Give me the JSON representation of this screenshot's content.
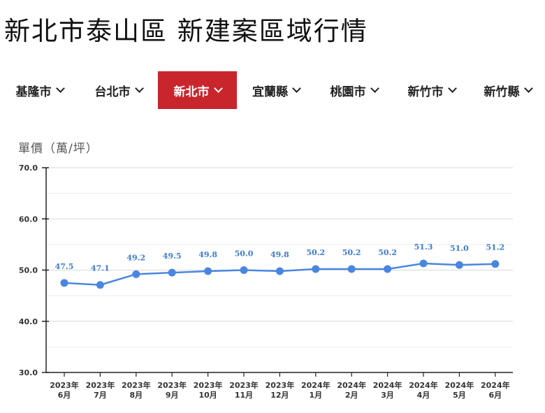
{
  "page": {
    "title": "新北市泰山區 新建案區域行情"
  },
  "tabs": [
    {
      "label": "基隆市",
      "active": false
    },
    {
      "label": "台北市",
      "active": false
    },
    {
      "label": "新北市",
      "active": true
    },
    {
      "label": "宜蘭縣",
      "active": false
    },
    {
      "label": "桃園市",
      "active": false
    },
    {
      "label": "新竹市",
      "active": false
    },
    {
      "label": "新竹縣",
      "active": false
    }
  ],
  "colors": {
    "accent": "#c9252c",
    "series": "#4a86e0",
    "data_label": "#3a7bd5"
  },
  "chart_data": {
    "type": "line",
    "ylabel": "單價（萬/坪）",
    "xlabel": "",
    "ylim": [
      30,
      70
    ],
    "yticks": [
      "30.0",
      "40.0",
      "50.0",
      "60.0",
      "70.0"
    ],
    "grid": true,
    "categories": [
      [
        "2023年",
        "6月"
      ],
      [
        "2023年",
        "7月"
      ],
      [
        "2023年",
        "8月"
      ],
      [
        "2023年",
        "9月"
      ],
      [
        "2023年",
        "10月"
      ],
      [
        "2023年",
        "11月"
      ],
      [
        "2023年",
        "12月"
      ],
      [
        "2024年",
        "1月"
      ],
      [
        "2024年",
        "2月"
      ],
      [
        "2024年",
        "3月"
      ],
      [
        "2024年",
        "4月"
      ],
      [
        "2024年",
        "5月"
      ],
      [
        "2024年",
        "6月"
      ]
    ],
    "series": [
      {
        "values": [
          47.5,
          47.1,
          49.2,
          49.5,
          49.8,
          50.0,
          49.8,
          50.2,
          50.2,
          50.2,
          51.3,
          51.0,
          51.2
        ],
        "labels": [
          "47.5",
          "47.1",
          "49.2",
          "49.5",
          "49.8",
          "50.0",
          "49.8",
          "50.2",
          "50.2",
          "50.2",
          "51.3",
          "51.0",
          "51.2"
        ]
      }
    ]
  }
}
